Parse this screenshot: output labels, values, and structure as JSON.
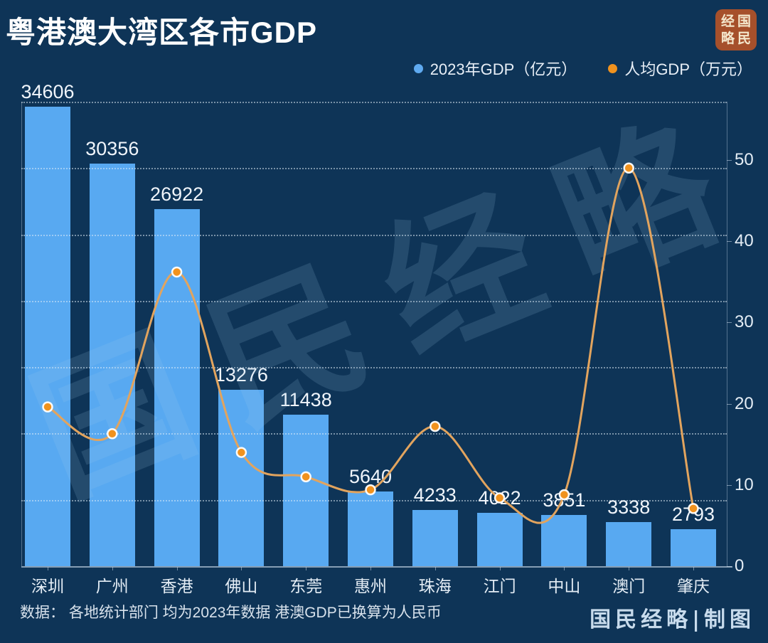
{
  "title": "粤港澳大湾区各市GDP",
  "logo": {
    "background": "#A6502B",
    "chars": [
      "经",
      "国",
      "略",
      "民"
    ]
  },
  "legend": {
    "items": [
      {
        "label": "2023年GDP（亿元）",
        "color": "#5FAAF0"
      },
      {
        "label": "人均GDP（万元）",
        "color": "#F0921E"
      }
    ]
  },
  "chart_data": {
    "type": "combo",
    "categories": [
      "深圳",
      "广州",
      "香港",
      "佛山",
      "东莞",
      "惠州",
      "珠海",
      "江门",
      "中山",
      "澳门",
      "肇庆"
    ],
    "series": [
      {
        "name": "2023年GDP（亿元）",
        "type": "bar",
        "axis": "left",
        "color": "#58A9F1",
        "values": [
          34606,
          30356,
          26922,
          13276,
          11438,
          5640,
          4233,
          4022,
          3851,
          3338,
          2793
        ],
        "data_labels_shown": true
      },
      {
        "name": "人均GDP（万元）",
        "type": "line",
        "axis": "right",
        "marker_color": "#F0921E",
        "line_color": "#E2A45E",
        "values": [
          19.6,
          16.3,
          36.2,
          14.0,
          11.0,
          9.4,
          17.2,
          8.4,
          8.8,
          49.0,
          7.1
        ]
      }
    ],
    "left_axis": {
      "min": 0,
      "max": 35000,
      "gridline_step": 5000,
      "labels_shown": false
    },
    "right_axis": {
      "min": 0,
      "max": 50,
      "ticks": [
        0,
        10,
        20,
        30,
        40,
        50
      ],
      "position": "right"
    },
    "grid": "dotted-horizontal",
    "legend_position": "top-right"
  },
  "watermark": {
    "text": "国民经略"
  },
  "footer": {
    "source": "数据： 各地统计部门 均为2023年数据 港澳GDP已换算为人民币",
    "credit": "国民经略|制图"
  }
}
